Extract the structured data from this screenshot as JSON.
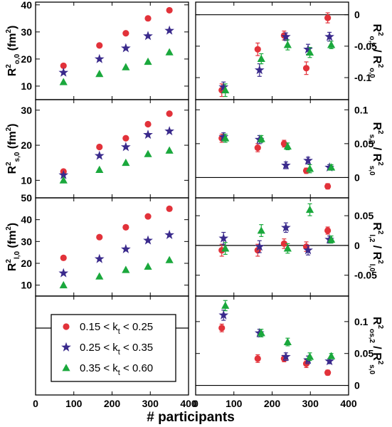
{
  "figure": {
    "xlabel": "# participants",
    "x_ticks": [
      "0",
      "100",
      "200",
      "300",
      "400"
    ],
    "xlim": [
      0,
      400
    ]
  },
  "legend": {
    "entries": [
      {
        "text": "0.15 < k",
        "sub": "t",
        "tail": " < 0.25",
        "color": "#e2323a",
        "marker": "circle"
      },
      {
        "text": "0.25 < k",
        "sub": "t",
        "tail": " < 0.35",
        "color": "#3a2a8c",
        "marker": "star"
      },
      {
        "text": "0.35 < k",
        "sub": "t",
        "tail": " < 0.60",
        "color": "#1aa83c",
        "marker": "triangle"
      }
    ]
  },
  "chart_data": [
    {
      "type": "scatter",
      "panel": "left-1",
      "ylabel": {
        "main": "R",
        "sup": "2",
        "sub": "o,0",
        "unit": " (fm",
        "unit_sup": "2",
        "unit_end": ")"
      },
      "ylim": [
        5,
        41
      ],
      "yticks": [
        10,
        20,
        30,
        40
      ],
      "x": [
        73,
        167,
        236,
        294,
        350
      ],
      "series": [
        {
          "values": [
            17.5,
            25,
            29.5,
            35,
            38
          ]
        },
        {
          "values": [
            15,
            20,
            24,
            28.5,
            30.5
          ]
        },
        {
          "values": [
            11.5,
            14.5,
            17,
            19,
            22.5
          ]
        }
      ]
    },
    {
      "type": "scatter",
      "panel": "right-1",
      "ylabel": {
        "main": "R",
        "sup": "2",
        "sub": "o,2",
        "sep": " / R",
        "sup2": "2",
        "sub2": "o,0"
      },
      "ylim": [
        -0.135,
        0.02
      ],
      "yticks": [
        0,
        -0.05,
        -0.1
      ],
      "ytick_labels": [
        "0",
        "-0.05",
        "-0.1"
      ],
      "hline": 0,
      "x": [
        73,
        167,
        236,
        294,
        350
      ],
      "series": [
        {
          "values": [
            -0.12,
            -0.055,
            -0.033,
            -0.085,
            -0.005
          ],
          "errors": [
            0.01,
            0.01,
            0.007,
            0.01,
            0.008
          ]
        },
        {
          "values": [
            -0.115,
            -0.088,
            -0.035,
            -0.055,
            -0.035
          ],
          "errors": [
            0.008,
            0.01,
            0.006,
            0.008,
            0.007
          ]
        },
        {
          "values": [
            -0.12,
            -0.07,
            -0.048,
            -0.06,
            -0.048
          ],
          "errors": [
            0.01,
            0.008,
            0.008,
            0.008,
            0.006
          ]
        }
      ]
    },
    {
      "type": "scatter",
      "panel": "left-2",
      "ylabel": {
        "main": "R",
        "sup": "2",
        "sub": "s,0",
        "unit": " (fm",
        "unit_sup": "2",
        "unit_end": ")"
      },
      "ylim": [
        5,
        33
      ],
      "yticks": [
        10,
        20,
        30
      ],
      "x": [
        73,
        167,
        236,
        294,
        350
      ],
      "series": [
        {
          "values": [
            12.5,
            19.5,
            22,
            26,
            29
          ]
        },
        {
          "values": [
            11.5,
            17,
            19.5,
            23,
            24
          ]
        },
        {
          "values": [
            10,
            13,
            15,
            17.5,
            18.5
          ]
        }
      ]
    },
    {
      "type": "scatter",
      "panel": "right-2",
      "ylabel": {
        "main": "R",
        "sup": "2",
        "sub": "s,2",
        "sep": " / R",
        "sup2": "2",
        "sub2": "s,0"
      },
      "ylim": [
        -0.03,
        0.115
      ],
      "yticks": [
        0,
        0.05,
        0.1
      ],
      "ytick_labels": [
        "0",
        "0.05",
        "0.1"
      ],
      "hline": 0,
      "x": [
        73,
        167,
        236,
        294,
        350
      ],
      "series": [
        {
          "values": [
            0.058,
            0.044,
            0.05,
            0.01,
            -0.013
          ],
          "errors": [
            0.006,
            0.006,
            0.005,
            0.004,
            0.004
          ]
        },
        {
          "values": [
            0.06,
            0.056,
            0.018,
            0.025,
            0.015
          ],
          "errors": [
            0.006,
            0.006,
            0.005,
            0.005,
            0.004
          ]
        },
        {
          "values": [
            0.058,
            0.057,
            0.046,
            0.013,
            0.015
          ],
          "errors": [
            0.006,
            0.005,
            0.005,
            0.006,
            0.004
          ]
        }
      ]
    },
    {
      "type": "scatter",
      "panel": "left-3",
      "ylabel": {
        "main": "R",
        "sup": "2",
        "sub": "l,0",
        "unit": " (fm",
        "unit_sup": "2",
        "unit_end": ")"
      },
      "ylim": [
        5,
        50
      ],
      "yticks": [
        10,
        20,
        30,
        40,
        50
      ],
      "x": [
        73,
        167,
        236,
        294,
        350
      ],
      "series": [
        {
          "values": [
            22.5,
            32,
            36.5,
            41.5,
            45
          ]
        },
        {
          "values": [
            15.5,
            22,
            26.5,
            30.5,
            33
          ]
        },
        {
          "values": [
            10,
            14,
            17,
            18.5,
            21.5
          ]
        }
      ]
    },
    {
      "type": "scatter",
      "panel": "right-3",
      "ylabel": {
        "main": "R",
        "sup": "2",
        "sub": "l,2",
        "sep": " / R",
        "sup2": "2",
        "sub2": "l,0"
      },
      "ylim": [
        -0.085,
        0.08
      ],
      "yticks": [
        0.05,
        0,
        -0.05
      ],
      "ytick_labels": [
        "0.05",
        "0",
        "-0.05"
      ],
      "hline": 0,
      "x": [
        73,
        167,
        236,
        294,
        350
      ],
      "series": [
        {
          "values": [
            -0.008,
            -0.008,
            0.003,
            -0.002,
            0.025
          ],
          "errors": [
            0.01,
            0.01,
            0.008,
            0.008,
            0.006
          ]
        },
        {
          "values": [
            0.012,
            -0.002,
            0.03,
            -0.008,
            0.01
          ],
          "errors": [
            0.01,
            0.01,
            0.008,
            0.008,
            0.006
          ]
        },
        {
          "values": [
            -0.005,
            0.025,
            -0.005,
            0.06,
            0.01
          ],
          "errors": [
            0.01,
            0.01,
            0.008,
            0.01,
            0.006
          ]
        }
      ]
    },
    {
      "type": "scatter",
      "panel": "right-4",
      "ylabel": {
        "main": "R",
        "sup": "2",
        "sub": "os,2",
        "sep": " / R",
        "sup2": "2",
        "sub2": "s,0"
      },
      "ylim": [
        -0.015,
        0.14
      ],
      "yticks": [
        0,
        0.05,
        0.1
      ],
      "ytick_labels": [
        "0",
        "0.05",
        "0.1"
      ],
      "hline": 0,
      "x": [
        73,
        167,
        236,
        294,
        350
      ],
      "series": [
        {
          "values": [
            0.09,
            0.042,
            0.042,
            0.034,
            0.02
          ],
          "errors": [
            0.006,
            0.006,
            0.005,
            0.006,
            0.004
          ]
        },
        {
          "values": [
            0.11,
            0.082,
            0.045,
            0.04,
            0.038
          ],
          "errors": [
            0.008,
            0.006,
            0.006,
            0.006,
            0.004
          ]
        },
        {
          "values": [
            0.125,
            0.082,
            0.068,
            0.045,
            0.046
          ],
          "errors": [
            0.008,
            0.006,
            0.006,
            0.006,
            0.004
          ]
        }
      ]
    }
  ]
}
